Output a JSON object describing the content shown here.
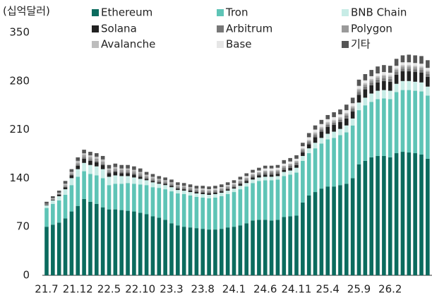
{
  "chart_data": {
    "type": "stacked_bar",
    "y_label": "(십억달러)",
    "categories": [
      "21.7",
      null,
      null,
      null,
      null,
      "21.12",
      null,
      null,
      null,
      null,
      "22.5",
      null,
      null,
      null,
      null,
      "22.10",
      null,
      null,
      null,
      null,
      "23.3",
      null,
      null,
      null,
      null,
      "23.8",
      null,
      null,
      null,
      null,
      "24.1",
      null,
      null,
      null,
      null,
      "24.6",
      null,
      null,
      null,
      null,
      "24.11",
      null,
      null,
      null,
      null,
      "25.4",
      null,
      null,
      null,
      null,
      "25.9",
      null,
      null,
      null,
      null,
      "26.2",
      null,
      null,
      null,
      null,
      null,
      null
    ],
    "ylim": [
      0,
      350
    ],
    "yticks": [
      0,
      70,
      140,
      210,
      280,
      350
    ],
    "grid": false,
    "series": [
      {
        "name": "Ethereum",
        "color": "#0b6b5e",
        "values": [
          70,
          73,
          76,
          82,
          92,
          100,
          110,
          106,
          103,
          98,
          95,
          95,
          94,
          93,
          92,
          90,
          88,
          85,
          83,
          80,
          75,
          72,
          70,
          69,
          68,
          67,
          66,
          66,
          67,
          69,
          70,
          72,
          75,
          79,
          80,
          80,
          79,
          80,
          84,
          85,
          86,
          105,
          115,
          120,
          125,
          128,
          128,
          130,
          132,
          140,
          160,
          165,
          170,
          172,
          172,
          170,
          176,
          178,
          177,
          176,
          174,
          168
        ]
      },
      {
        "name": "Tron",
        "color": "#5ec4b6",
        "values": [
          27,
          30,
          32,
          34,
          38,
          42,
          40,
          40,
          41,
          42,
          35,
          37,
          38,
          40,
          40,
          41,
          42,
          42,
          43,
          44,
          46,
          46,
          47,
          46,
          45,
          45,
          45,
          46,
          47,
          48,
          50,
          52,
          53,
          54,
          56,
          57,
          58,
          58,
          59,
          60,
          62,
          60,
          61,
          63,
          65,
          68,
          70,
          72,
          74,
          76,
          78,
          80,
          80,
          82,
          83,
          84,
          88,
          89,
          90,
          90,
          91,
          91
        ]
      },
      {
        "name": "BNB Chain",
        "color": "#c7ece6",
        "values": [
          4,
          5,
          6,
          8,
          10,
          11,
          12,
          13,
          13,
          13,
          12,
          12,
          11,
          10,
          9,
          8,
          7,
          7,
          6,
          6,
          6,
          5,
          5,
          5,
          5,
          5,
          5,
          5,
          5,
          5,
          5,
          5,
          5,
          5,
          5,
          5,
          5,
          5,
          6,
          6,
          7,
          7,
          7,
          8,
          8,
          8,
          9,
          9,
          10,
          10,
          11,
          11,
          12,
          12,
          12,
          12,
          12,
          13,
          13,
          13,
          13,
          13
        ]
      },
      {
        "name": "Solana",
        "color": "#222222",
        "values": [
          1,
          1,
          2,
          3,
          4,
          5,
          6,
          6,
          6,
          6,
          5,
          5,
          4,
          4,
          4,
          3,
          2,
          2,
          2,
          2,
          2,
          2,
          2,
          2,
          2,
          2,
          2,
          2,
          2,
          2,
          2,
          3,
          3,
          3,
          3,
          3,
          3,
          3,
          3,
          4,
          4,
          5,
          6,
          8,
          9,
          10,
          10,
          10,
          10,
          10,
          11,
          12,
          12,
          12,
          13,
          13,
          13,
          14,
          14,
          14,
          14,
          14
        ]
      },
      {
        "name": "Arbitrum",
        "color": "#777777",
        "values": [
          0,
          0,
          1,
          1,
          1,
          2,
          2,
          2,
          2,
          2,
          2,
          2,
          2,
          2,
          2,
          2,
          2,
          2,
          2,
          2,
          2,
          2,
          2,
          2,
          2,
          2,
          2,
          2,
          2,
          2,
          2,
          2,
          2,
          2,
          2,
          3,
          3,
          3,
          3,
          3,
          3,
          3,
          3,
          3,
          3,
          3,
          3,
          3,
          4,
          4,
          4,
          4,
          4,
          4,
          4,
          4,
          4,
          4,
          4,
          4,
          4,
          4
        ]
      },
      {
        "name": "Polygon",
        "color": "#9a9a9a",
        "values": [
          1,
          1,
          1,
          2,
          2,
          2,
          3,
          3,
          3,
          3,
          3,
          3,
          3,
          3,
          3,
          3,
          2,
          2,
          2,
          2,
          2,
          2,
          2,
          2,
          2,
          2,
          2,
          2,
          2,
          2,
          2,
          2,
          2,
          2,
          2,
          2,
          2,
          2,
          2,
          2,
          2,
          2,
          2,
          2,
          2,
          2,
          2,
          2,
          2,
          2,
          3,
          3,
          3,
          3,
          3,
          3,
          3,
          3,
          3,
          3,
          3,
          3
        ]
      },
      {
        "name": "Avalanche",
        "color": "#bdbdbd",
        "values": [
          0,
          1,
          1,
          2,
          2,
          3,
          3,
          3,
          3,
          3,
          2,
          2,
          2,
          2,
          2,
          2,
          2,
          2,
          1,
          1,
          1,
          1,
          1,
          1,
          1,
          1,
          1,
          1,
          1,
          1,
          1,
          1,
          1,
          1,
          1,
          1,
          1,
          1,
          1,
          1,
          1,
          1,
          1,
          2,
          2,
          2,
          2,
          2,
          2,
          2,
          2,
          2,
          2,
          2,
          2,
          2,
          2,
          2,
          2,
          2,
          2,
          2
        ]
      },
      {
        "name": "Base",
        "color": "#e6e6e6",
        "values": [
          0,
          0,
          0,
          0,
          0,
          0,
          0,
          0,
          0,
          0,
          0,
          0,
          0,
          0,
          0,
          0,
          0,
          0,
          0,
          0,
          0,
          0,
          0,
          0,
          0,
          1,
          1,
          1,
          1,
          1,
          1,
          1,
          2,
          2,
          2,
          3,
          3,
          3,
          3,
          3,
          3,
          3,
          4,
          4,
          4,
          4,
          4,
          4,
          4,
          4,
          4,
          4,
          4,
          4,
          4,
          4,
          4,
          4,
          4,
          4,
          4,
          4
        ]
      },
      {
        "name": "기타",
        "color": "#555555",
        "values": [
          3,
          3,
          3,
          4,
          4,
          5,
          5,
          5,
          5,
          5,
          5,
          5,
          5,
          5,
          5,
          5,
          4,
          4,
          4,
          4,
          4,
          4,
          4,
          4,
          4,
          4,
          4,
          4,
          4,
          4,
          4,
          4,
          4,
          4,
          4,
          4,
          4,
          4,
          5,
          5,
          5,
          5,
          6,
          6,
          6,
          6,
          7,
          7,
          8,
          8,
          9,
          9,
          9,
          10,
          10,
          10,
          10,
          10,
          11,
          11,
          11,
          11
        ]
      }
    ]
  }
}
